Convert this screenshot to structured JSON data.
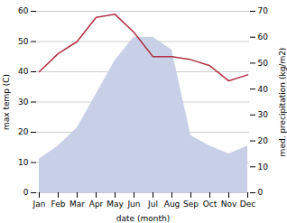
{
  "chart_data": {
    "type": "line",
    "xlabel": "date (month)",
    "ylabel": "max temp (C)",
    "y2label": "med. precipitation (kg/m2)",
    "categories": [
      "Jan",
      "Feb",
      "Mar",
      "Apr",
      "May",
      "Jun",
      "Jul",
      "Aug",
      "Sep",
      "Oct",
      "Nov",
      "Dec"
    ],
    "series": [
      {
        "type": "area",
        "axis": "y2",
        "color": "#c8d0e8",
        "values": [
          13,
          18,
          25,
          38,
          51,
          60,
          60,
          55,
          22,
          18,
          15,
          18
        ]
      },
      {
        "type": "line",
        "color": "#b03040",
        "values": [
          40,
          46,
          50,
          58,
          59,
          53,
          45,
          45,
          44,
          42,
          37,
          39
        ]
      }
    ],
    "ylim": [
      0,
      60
    ],
    "yticks": [
      0,
      10,
      20,
      30,
      40,
      50,
      60
    ],
    "y2lim": [
      0,
      70
    ],
    "y2ticks": [
      0,
      10,
      20,
      30,
      40,
      50,
      60,
      70
    ],
    "grid": true
  }
}
